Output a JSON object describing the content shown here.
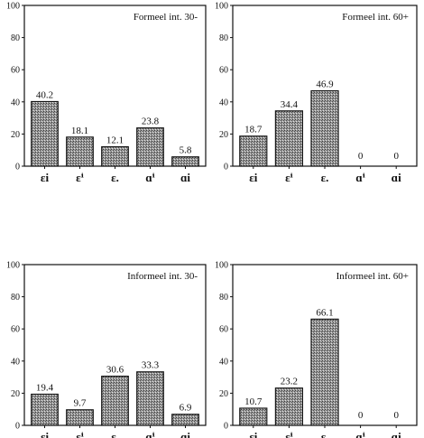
{
  "bar_color": "#8a8a8a",
  "chart_data": [
    {
      "type": "bar",
      "title": "Formeel int. 30-",
      "categories": [
        "εi",
        "εⁱ",
        "ε.",
        "ɑⁱ",
        "ɑi"
      ],
      "values": [
        40.2,
        18.1,
        12.1,
        23.8,
        5.8
      ],
      "value_labels": [
        "40.2",
        "18.1",
        "12.1",
        "23.8",
        "5.8"
      ],
      "ylim": [
        0,
        100
      ],
      "yticks": [
        "0",
        "20",
        "40",
        "60",
        "80",
        "100"
      ],
      "grid": false,
      "title_position": "top-right"
    },
    {
      "type": "bar",
      "title": "Formeel int. 60+",
      "categories": [
        "εi",
        "εⁱ",
        "ε.",
        "ɑⁱ",
        "ɑi"
      ],
      "values": [
        18.7,
        34.4,
        46.9,
        0,
        0
      ],
      "value_labels": [
        "18.7",
        "34.4",
        "46.9",
        "0",
        "0"
      ],
      "ylim": [
        0,
        100
      ],
      "yticks": [
        "0",
        "20",
        "40",
        "60",
        "80",
        "100"
      ],
      "grid": false,
      "title_position": "top-right"
    },
    {
      "type": "bar",
      "title": "Informeel int. 30-",
      "categories": [
        "εi",
        "εⁱ",
        "ε.",
        "ɑⁱ",
        "ɑi"
      ],
      "values": [
        19.4,
        9.7,
        30.6,
        33.3,
        6.9
      ],
      "value_labels": [
        "19.4",
        "9.7",
        "30.6",
        "33.3",
        "6.9"
      ],
      "ylim": [
        0,
        100
      ],
      "yticks": [
        "0",
        "20",
        "40",
        "60",
        "80",
        "100"
      ],
      "grid": false,
      "title_position": "top-right"
    },
    {
      "type": "bar",
      "title": "Informeel int. 60+",
      "categories": [
        "εi",
        "εⁱ",
        "ε.",
        "ɑⁱ",
        "ɑi"
      ],
      "values": [
        10.7,
        23.2,
        66.1,
        0,
        0
      ],
      "value_labels": [
        "10.7",
        "23.2",
        "66.1",
        "0",
        "0"
      ],
      "ylim": [
        0,
        100
      ],
      "yticks": [
        "0",
        "20",
        "40",
        "60",
        "80",
        "100"
      ],
      "grid": false,
      "title_position": "top-right"
    }
  ]
}
